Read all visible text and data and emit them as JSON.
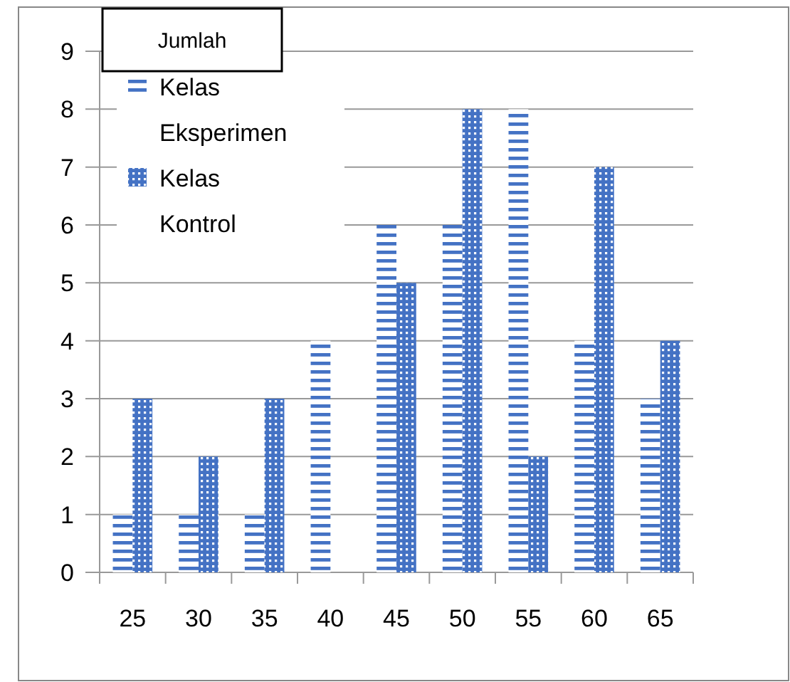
{
  "chart_data": {
    "type": "bar",
    "ylabel": "Jumlah",
    "categories": [
      "25",
      "30",
      "35",
      "40",
      "45",
      "50",
      "55",
      "60",
      "65"
    ],
    "series": [
      {
        "name": "Kelas Eksperimen",
        "color": "#4472c4",
        "values": [
          1,
          1,
          1,
          4,
          6,
          6,
          8,
          4,
          3
        ]
      },
      {
        "name": "Kelas Kontrol",
        "color": "#4472c4",
        "values": [
          3,
          2,
          3,
          0,
          5,
          8,
          2,
          7,
          4
        ]
      }
    ],
    "ylim": [
      0,
      9
    ],
    "yticks": [
      0,
      1,
      2,
      3,
      4,
      5,
      6,
      7,
      8,
      9
    ],
    "grid": "y",
    "legend": "top left"
  }
}
